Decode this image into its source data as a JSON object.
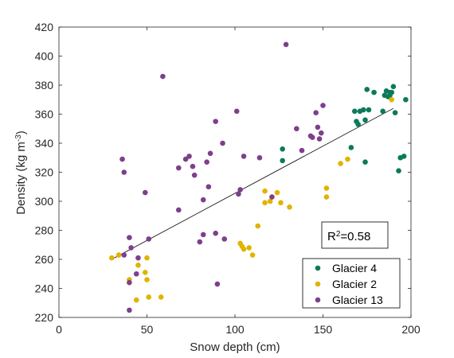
{
  "chart_data": {
    "type": "scatter",
    "xlabel": "Snow depth (cm)",
    "ylabel_main": "Density (kg m",
    "ylabel_sup": "-3",
    "ylabel_close": ")",
    "xlim": [
      0,
      200
    ],
    "ylim": [
      220,
      420
    ],
    "xticks": [
      0,
      50,
      100,
      150,
      200
    ],
    "yticks": [
      220,
      240,
      260,
      280,
      300,
      320,
      340,
      360,
      380,
      400,
      420
    ],
    "grid": false,
    "legend_position": "bottom-right",
    "annotation": {
      "prefix": "R",
      "sup": "2",
      "suffix": "=0.58"
    },
    "fit_line": {
      "x": [
        30,
        190
      ],
      "y": [
        260,
        364
      ]
    },
    "series": [
      {
        "name": "Glacier 4",
        "color": "#0b7a5a",
        "points": [
          [
            127,
            336
          ],
          [
            127,
            328
          ],
          [
            166,
            337
          ],
          [
            168,
            362
          ],
          [
            169,
            355
          ],
          [
            170,
            353
          ],
          [
            171,
            362
          ],
          [
            173,
            363
          ],
          [
            174,
            356
          ],
          [
            174,
            327
          ],
          [
            175,
            377
          ],
          [
            176,
            363
          ],
          [
            179,
            375
          ],
          [
            184,
            362
          ],
          [
            185,
            373
          ],
          [
            186,
            376
          ],
          [
            187,
            372
          ],
          [
            188,
            375
          ],
          [
            188,
            373
          ],
          [
            189,
            375
          ],
          [
            190,
            379
          ],
          [
            191,
            361
          ],
          [
            193,
            321
          ],
          [
            194,
            330
          ],
          [
            196,
            331
          ],
          [
            197,
            370
          ]
        ]
      },
      {
        "name": "Glacier 2",
        "color": "#e0b400",
        "points": [
          [
            30,
            261
          ],
          [
            34,
            263
          ],
          [
            40,
            246
          ],
          [
            44,
            232
          ],
          [
            45,
            256
          ],
          [
            49,
            251
          ],
          [
            50,
            246
          ],
          [
            50,
            261
          ],
          [
            51,
            234
          ],
          [
            58,
            234
          ],
          [
            103,
            271
          ],
          [
            104,
            269
          ],
          [
            105,
            267
          ],
          [
            108,
            268
          ],
          [
            110,
            263
          ],
          [
            113,
            283
          ],
          [
            117,
            307
          ],
          [
            117,
            299
          ],
          [
            120,
            300
          ],
          [
            124,
            306
          ],
          [
            126,
            299
          ],
          [
            131,
            296
          ],
          [
            152,
            309
          ],
          [
            152,
            303
          ],
          [
            160,
            326
          ],
          [
            164,
            329
          ],
          [
            189,
            370
          ]
        ]
      },
      {
        "name": "Glacier 13",
        "color": "#7e3f8c",
        "points": [
          [
            36,
            329
          ],
          [
            37,
            320
          ],
          [
            37,
            263
          ],
          [
            40,
            275
          ],
          [
            40,
            244
          ],
          [
            40,
            225
          ],
          [
            41,
            268
          ],
          [
            44,
            250
          ],
          [
            45,
            261
          ],
          [
            49,
            306
          ],
          [
            51,
            274
          ],
          [
            59,
            386
          ],
          [
            68,
            323
          ],
          [
            68,
            294
          ],
          [
            72,
            329
          ],
          [
            74,
            331
          ],
          [
            76,
            324
          ],
          [
            77,
            318
          ],
          [
            80,
            272
          ],
          [
            82,
            277
          ],
          [
            82,
            301
          ],
          [
            84,
            327
          ],
          [
            85,
            310
          ],
          [
            86,
            333
          ],
          [
            89,
            355
          ],
          [
            89,
            278
          ],
          [
            90,
            243
          ],
          [
            93,
            340
          ],
          [
            94,
            274
          ],
          [
            101,
            362
          ],
          [
            102,
            305
          ],
          [
            103,
            308
          ],
          [
            105,
            331
          ],
          [
            114,
            330
          ],
          [
            121,
            303
          ],
          [
            129,
            408
          ],
          [
            135,
            350
          ],
          [
            138,
            335
          ],
          [
            143,
            345
          ],
          [
            144,
            344
          ],
          [
            146,
            361
          ],
          [
            147,
            351
          ],
          [
            148,
            343
          ],
          [
            149,
            347
          ],
          [
            150,
            366
          ]
        ]
      }
    ]
  }
}
